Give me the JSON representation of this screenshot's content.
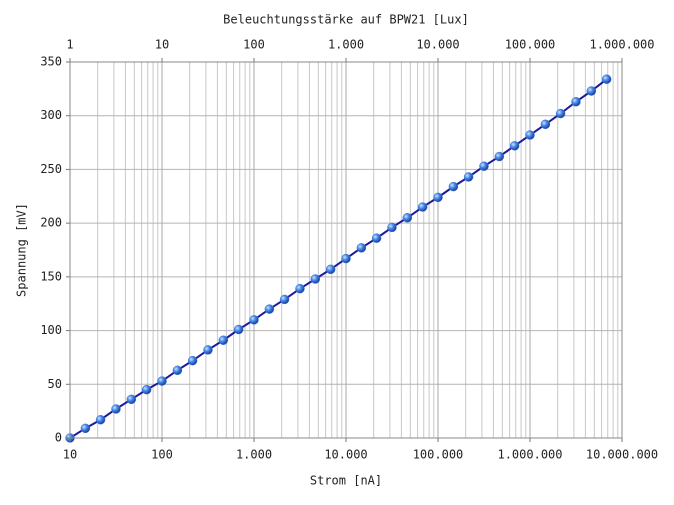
{
  "chart_data": {
    "type": "line",
    "x2label": "Beleuchtungsstärke auf BPW21 [Lux]",
    "xlabel": "Strom [nA]",
    "ylabel": "Spannung [mV]",
    "xscale": "log",
    "grid": true,
    "xlim": [
      10,
      10000000
    ],
    "xticks": [
      10,
      100,
      {
        "value": 1000,
        "label": "1.000"
      },
      {
        "value": 10000,
        "label": "10.000"
      },
      {
        "value": 100000,
        "label": "100.000"
      },
      {
        "value": 1000000,
        "label": "1.000.000"
      },
      {
        "value": 10000000,
        "label": "10.000.000"
      }
    ],
    "x2lim": [
      1,
      1000000
    ],
    "x2ticks": [
      1,
      10,
      100,
      {
        "value": 1000,
        "label": "1.000"
      },
      {
        "value": 10000,
        "label": "10.000"
      },
      {
        "value": 100000,
        "label": "100.000"
      },
      {
        "value": 1000000,
        "label": "1.000.000"
      }
    ],
    "ylim": [
      0,
      350
    ],
    "yticks": [
      0,
      50,
      100,
      150,
      200,
      250,
      300,
      350
    ],
    "x": [
      10,
      14.7,
      21.5,
      31.6,
      46.4,
      68.1,
      100,
      147,
      215,
      316,
      464,
      681,
      1000,
      1470,
      2150,
      3160,
      4640,
      6810,
      10000,
      14700,
      21500,
      31600,
      46400,
      68100,
      100000,
      147000,
      215000,
      316000,
      464000,
      681000,
      1000000,
      1470000,
      2150000,
      3160000,
      4640000,
      6810000
    ],
    "series": [
      {
        "color": "#1a1a9c",
        "marker_color": "#3a7be0",
        "values": [
          0,
          9,
          17,
          27,
          36,
          45,
          53,
          63,
          72,
          82,
          91,
          101,
          110,
          120,
          129,
          139,
          148,
          157,
          167,
          177,
          186,
          196,
          205,
          215,
          224,
          234,
          243,
          253,
          262,
          272,
          282,
          292,
          302,
          313,
          323,
          334
        ]
      }
    ]
  }
}
